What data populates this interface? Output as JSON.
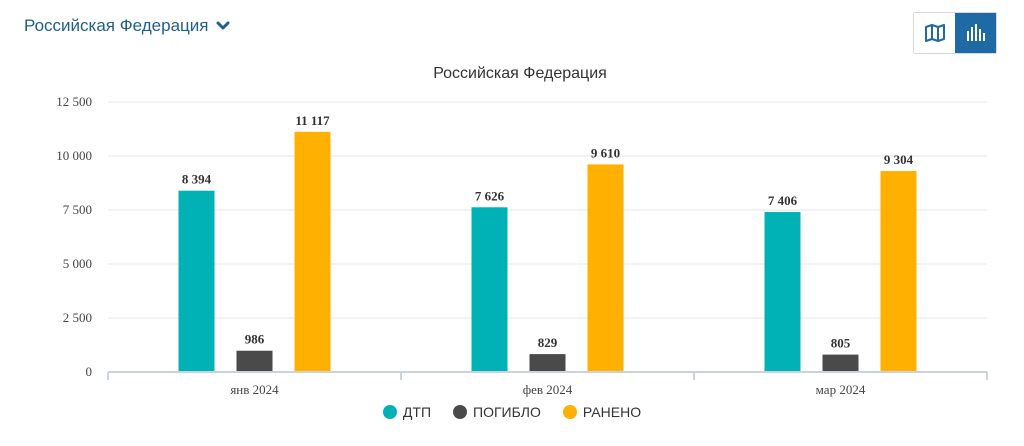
{
  "header": {
    "region": "Российская Федерация",
    "region_icon": "chevron-down-icon",
    "view_map_icon": "map-icon",
    "view_chart_icon": "bar-chart-icon"
  },
  "colors": {
    "accent": "#1f6aa5",
    "dtp": "#00b2b5",
    "killed": "#4a4a4a",
    "injured": "#ffb000"
  },
  "chart_data": {
    "type": "bar",
    "title": "Российская Федерация",
    "categories": [
      "янв 2024",
      "фев 2024",
      "мар 2024"
    ],
    "series": [
      {
        "name": "ДТП",
        "values": [
          8394,
          7626,
          7406
        ],
        "labels": [
          "8 394",
          "7 626",
          "7 406"
        ],
        "color": "#00b2b5"
      },
      {
        "name": "ПОГИБЛО",
        "values": [
          986,
          829,
          805
        ],
        "labels": [
          "986",
          "829",
          "805"
        ],
        "color": "#4a4a4a"
      },
      {
        "name": "РАНЕНО",
        "values": [
          11117,
          9610,
          9304
        ],
        "labels": [
          "11 117",
          "9 610",
          "9 304"
        ],
        "color": "#ffb000"
      }
    ],
    "yticks": [
      0,
      2500,
      5000,
      7500,
      10000,
      12500
    ],
    "ytick_labels": [
      "0",
      "2 500",
      "5 000",
      "7 500",
      "10 000",
      "12 500"
    ],
    "ylim": [
      0,
      12500
    ],
    "xlabel": "",
    "ylabel": "",
    "grid": true,
    "legend": "bottom-center"
  }
}
